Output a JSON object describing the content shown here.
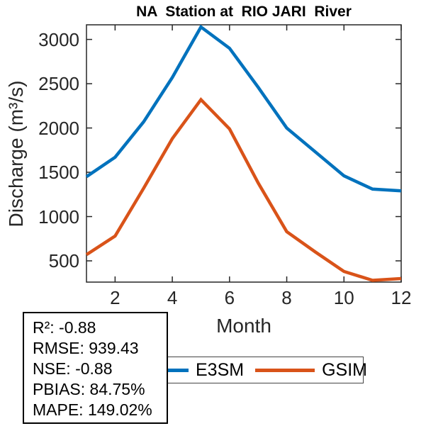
{
  "chart_data": {
    "type": "line",
    "title": "NA  Station at  RIO JARI  River",
    "xlabel": "Month",
    "ylabel": "Discharge (m³/s)",
    "x": [
      1,
      2,
      3,
      4,
      5,
      6,
      7,
      8,
      9,
      10,
      11,
      12
    ],
    "series": [
      {
        "name": "E3SM",
        "color": "#0072BD",
        "values": [
          1450,
          1670,
          2070,
          2570,
          3140,
          2900,
          2460,
          2000,
          1730,
          1460,
          1310,
          1290
        ]
      },
      {
        "name": "GSIM",
        "color": "#D95319",
        "values": [
          570,
          780,
          1320,
          1880,
          2320,
          1990,
          1380,
          830,
          600,
          380,
          280,
          300
        ]
      }
    ],
    "xticks": [
      2,
      4,
      6,
      8,
      10,
      12
    ],
    "yticks": [
      500,
      1000,
      1500,
      2000,
      2500,
      3000
    ],
    "xlim": [
      1,
      12
    ],
    "ylim": [
      260,
      3165
    ],
    "grid": false,
    "legend_position": "below plot, horizontal",
    "line_width": 4.5
  },
  "stats_box": {
    "lines": [
      "R²: -0.88",
      "RMSE: 939.43",
      "NSE: -0.88",
      "PBIAS: 84.75%",
      "MAPE: 149.02%"
    ]
  },
  "colors": {
    "axis": "#262626",
    "tick_text": "#262626",
    "title_text": "#000000",
    "background": "#ffffff"
  }
}
